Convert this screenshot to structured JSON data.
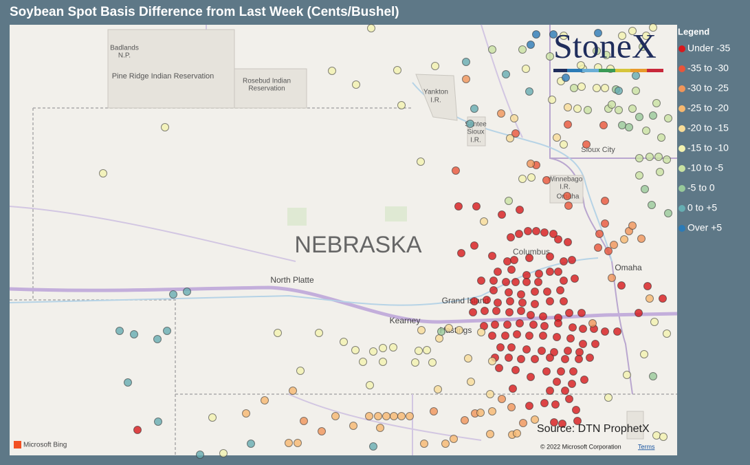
{
  "title": "Soybean Spot Basis Difference from Last Week (Cents/Bushel)",
  "legend": {
    "title": "Legend",
    "items": [
      {
        "label": "Under -35",
        "color": "#d7191c"
      },
      {
        "label": "-35 to -30",
        "color": "#e8553a"
      },
      {
        "label": "-30 to -25",
        "color": "#f0955a"
      },
      {
        "label": "-25 to -20",
        "color": "#f6b870"
      },
      {
        "label": "-20 to -15",
        "color": "#f8dc98"
      },
      {
        "label": "-15 to -10",
        "color": "#f3f2b0"
      },
      {
        "label": "-10 to -5",
        "color": "#c9e2a2"
      },
      {
        "label": "-5 to 0",
        "color": "#98c99a"
      },
      {
        "label": "0 to +5",
        "color": "#66adb2"
      },
      {
        "label": "Over +5",
        "color": "#2c7bb6"
      }
    ]
  },
  "map": {
    "labels": [
      "Badlands",
      "N.P.",
      "Pine Ridge Indian Reservation",
      "Rosebud Indian",
      "Reservation",
      "Yankton",
      "I.R.",
      "Santee",
      "Sioux",
      "I.R.",
      "Sioux City",
      "Winnebago",
      "I.R.",
      "Omaha",
      "NEBRASKA",
      "Columbus",
      "North Platte",
      "Grand Island",
      "Kearney",
      "Hastings",
      "Omaha"
    ]
  },
  "logo": "StoneX",
  "source": "Source: DTN ProphetX",
  "attribution": {
    "provider": "Microsoft Bing",
    "copyright": "© 2022 Microsoft Corporation",
    "terms": "Terms"
  }
}
